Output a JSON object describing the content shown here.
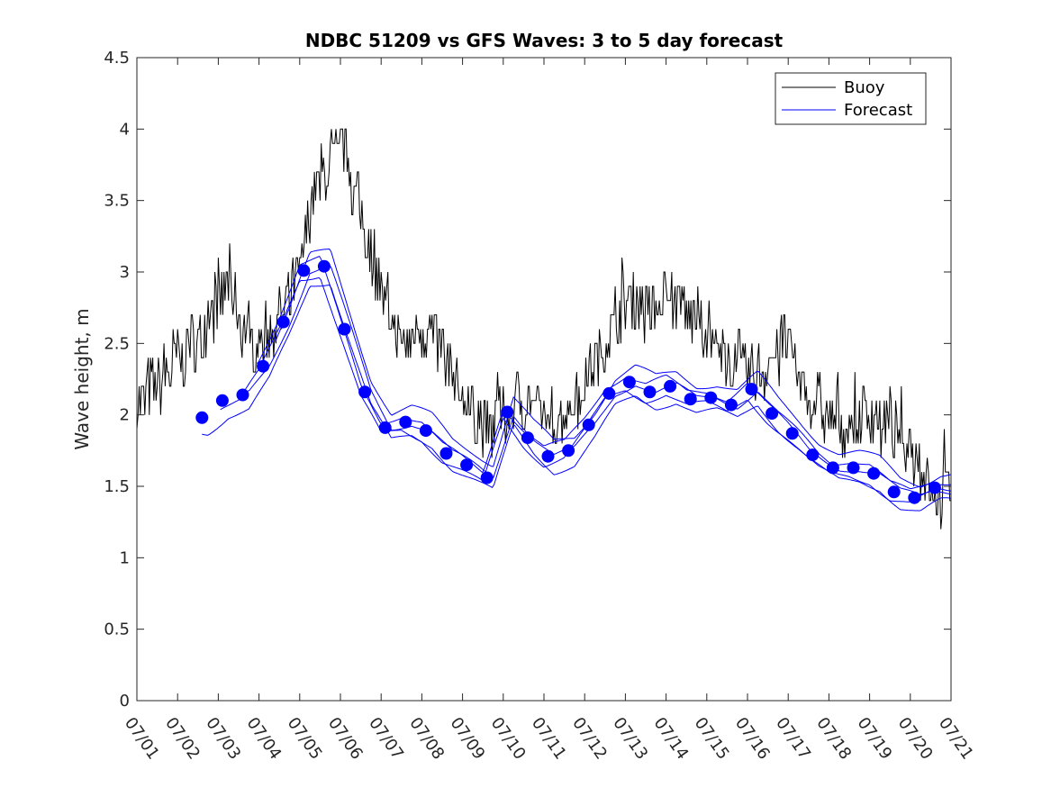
{
  "chart_data": {
    "type": "line",
    "title": "NDBC 51209 vs GFS Waves: 3 to 5 day forecast",
    "xlabel": "",
    "ylabel": "Wave height, m",
    "xlim": [
      "07/01",
      "07/21"
    ],
    "ylim": [
      0,
      4.5
    ],
    "yticks": [
      "0",
      "0.5",
      "1",
      "1.5",
      "2",
      "2.5",
      "3",
      "3.5",
      "4",
      "4.5"
    ],
    "xticks": [
      "07/01",
      "07/02",
      "07/03",
      "07/04",
      "07/05",
      "07/06",
      "07/07",
      "07/08",
      "07/09",
      "07/10",
      "07/11",
      "07/12",
      "07/13",
      "07/14",
      "07/15",
      "07/16",
      "07/17",
      "07/18",
      "07/19",
      "07/20",
      "07/21"
    ],
    "grid": false,
    "legend": {
      "placement": "top-right",
      "entries": [
        "Buoy",
        "Forecast"
      ]
    },
    "colors": {
      "buoy": "#000000",
      "forecast": "#0000ff"
    },
    "series": [
      {
        "name": "Buoy",
        "x": [
          0,
          0.5,
          1,
          1.5,
          2,
          2.3,
          2.6,
          3,
          3.3,
          3.6,
          4,
          4.3,
          4.6,
          4.9,
          5.1,
          5.3,
          5.6,
          5.9,
          6.2,
          6.5,
          7,
          7.5,
          8,
          8.3,
          8.6,
          9,
          9.5,
          10,
          10.5,
          11,
          11.5,
          12,
          12.3,
          12.6,
          13,
          13.3,
          13.6,
          14,
          14.3,
          14.6,
          15,
          15.3,
          15.6,
          16,
          16.3,
          16.6,
          17,
          17.5,
          18,
          18.5,
          19,
          19.3,
          19.6,
          20
        ],
        "y": [
          2.1,
          2.2,
          2.4,
          2.5,
          2.8,
          2.9,
          2.6,
          2.5,
          2.6,
          2.7,
          3.0,
          3.5,
          3.7,
          3.8,
          3.9,
          3.6,
          3.3,
          3.0,
          2.7,
          2.5,
          2.6,
          2.5,
          2.1,
          2.0,
          1.9,
          2.0,
          2.1,
          2.0,
          2.0,
          2.2,
          2.5,
          2.8,
          2.8,
          2.7,
          2.9,
          2.8,
          2.7,
          2.6,
          2.4,
          2.4,
          2.3,
          2.3,
          2.4,
          2.5,
          2.2,
          2.1,
          2.0,
          1.9,
          2.0,
          1.9,
          1.8,
          1.6,
          1.4,
          1.5
        ]
      },
      {
        "name": "Forecast",
        "points_x": [
          1.6,
          2.1,
          2.6,
          3.1,
          3.6,
          4.1,
          4.6,
          5.1,
          5.6,
          6.1,
          6.6,
          7.1,
          7.6,
          8.1,
          8.6,
          9.1,
          9.6,
          10.1,
          10.6,
          11.1,
          11.6,
          12.1,
          12.6,
          13.1,
          13.6,
          14.1,
          14.6,
          15.1,
          15.6,
          16.1,
          16.6,
          17.1,
          17.6,
          18.1,
          18.6,
          19.1,
          19.6
        ],
        "points_y": [
          1.98,
          2.1,
          2.14,
          2.34,
          2.65,
          3.01,
          3.04,
          2.6,
          2.16,
          1.91,
          1.95,
          1.89,
          1.73,
          1.65,
          1.56,
          2.02,
          1.84,
          1.71,
          1.75,
          1.93,
          2.15,
          2.23,
          2.16,
          2.2,
          2.11,
          2.12,
          2.07,
          2.18,
          2.01,
          1.87,
          1.72,
          1.63,
          1.63,
          1.59,
          1.46,
          1.42,
          1.49
        ]
      }
    ]
  }
}
